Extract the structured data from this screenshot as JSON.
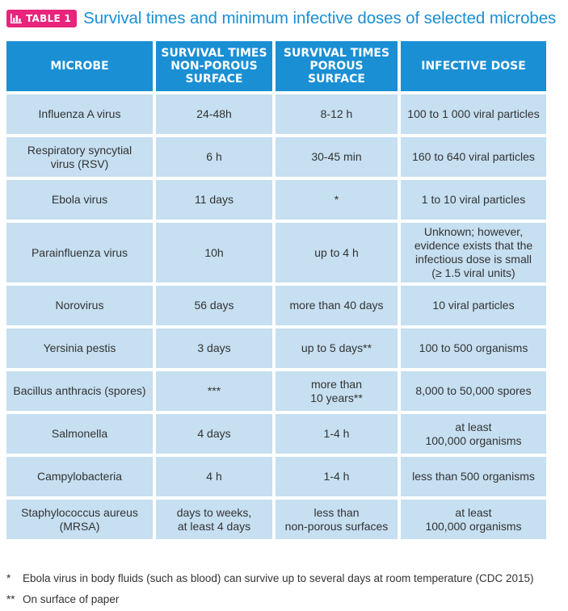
{
  "badge": {
    "label": "TABLE 1",
    "icon": "bar-chart-icon"
  },
  "title": "Survival times and minimum infective doses of selected microbes",
  "colors": {
    "accent": "#1a8fd4",
    "badge": "#e8247c",
    "row": "#c6dff1"
  },
  "headers": [
    "MICROBE",
    "SURVIVAL TIMES\nNON-POROUS\nSURFACE",
    "SURVIVAL TIMES\nPOROUS\nSURFACE",
    "INFECTIVE DOSE"
  ],
  "rows": [
    [
      "Influenza A virus",
      "24-48h",
      "8-12 h",
      "100 to 1 000 viral particles"
    ],
    [
      "Respiratory syncytial\nvirus (RSV)",
      "6 h",
      "30-45 min",
      "160 to 640 viral particles"
    ],
    [
      "Ebola virus",
      "11 days",
      "*",
      "1 to 10 viral particles"
    ],
    [
      "Parainfluenza virus",
      "10h",
      "up to 4 h",
      "Unknown; however,\nevidence exists that the\ninfectious dose is small\n(≥ 1.5 viral units)"
    ],
    [
      "Norovirus",
      "56 days",
      "more than 40 days",
      "10 viral particles"
    ],
    [
      "Yersinia pestis",
      "3 days",
      "up to 5 days**",
      "100 to 500 organisms"
    ],
    [
      "Bacillus anthracis (spores)",
      "***",
      "more than\n10 years**",
      "8,000 to 50,000 spores"
    ],
    [
      "Salmonella",
      "4 days",
      "1-4 h",
      "at least\n100,000 organisms"
    ],
    [
      "Campylobacteria",
      "4 h",
      "1-4 h",
      "less than 500 organisms"
    ],
    [
      "Staphylococcus aureus\n(MRSA)",
      "days to weeks,\nat least 4 days",
      "less than\nnon-porous surfaces",
      "at least\n100,000 organisms"
    ]
  ],
  "footnotes": [
    {
      "mark": "*",
      "text": "Ebola virus in body fluids (such as blood) can survive up to several days at room temperature (CDC 2015)"
    },
    {
      "mark": "**",
      "text": "On surface of paper"
    }
  ]
}
